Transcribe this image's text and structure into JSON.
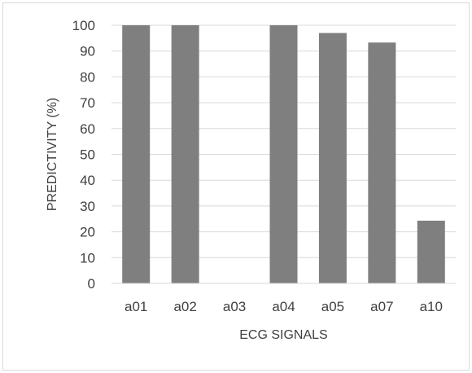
{
  "chart_data": {
    "type": "bar",
    "categories": [
      "a01",
      "a02",
      "a03",
      "a04",
      "a05",
      "a07",
      "a10"
    ],
    "values": [
      100,
      100,
      0,
      100,
      97,
      93.3,
      24.3
    ],
    "xlabel": "ECG SIGNALS",
    "ylabel": "PREDICTIVITY (%)",
    "ylim": [
      0,
      100
    ],
    "yticks": [
      0,
      10,
      20,
      30,
      40,
      50,
      60,
      70,
      80,
      90,
      100
    ],
    "grid": true,
    "legend": "none",
    "bar_color": "#7f7f7f",
    "grid_color": "#d9d9d9"
  }
}
